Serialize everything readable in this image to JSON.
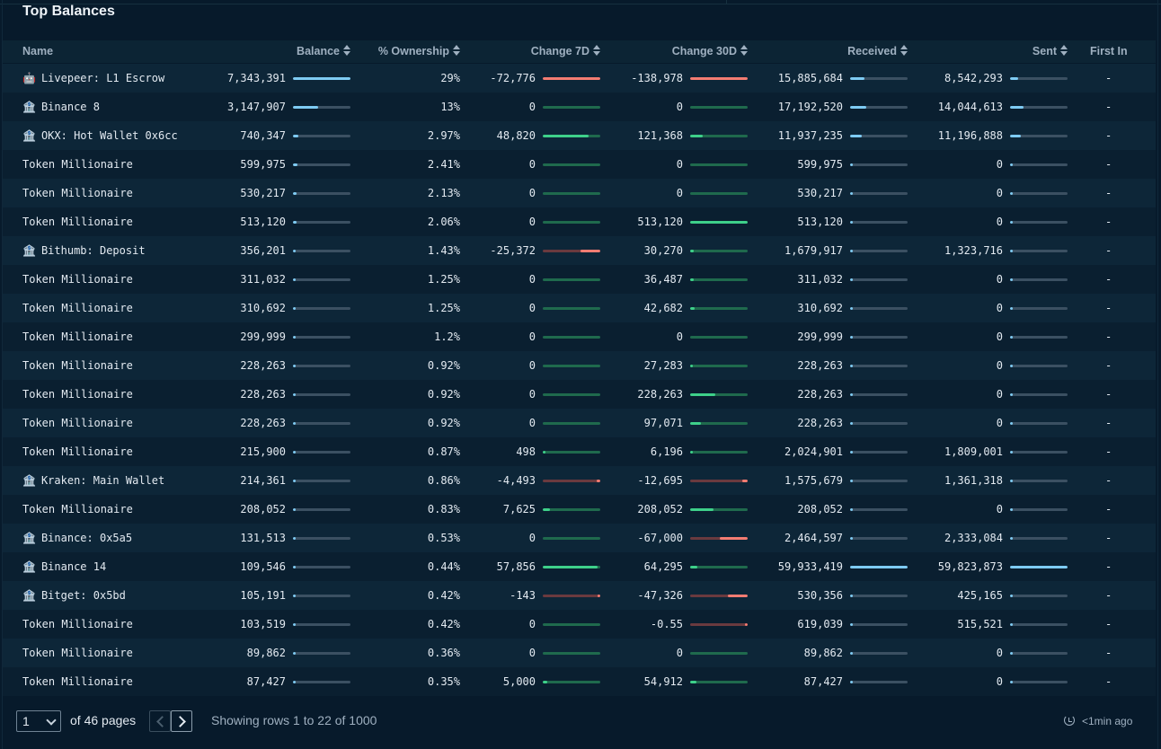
{
  "title": "Top Balances",
  "columns": {
    "name": "Name",
    "balance": "Balance",
    "ownership": "% Ownership",
    "change7d": "Change 7D",
    "change30d": "Change 30D",
    "received": "Received",
    "sent": "Sent",
    "first_in": "First In"
  },
  "colors": {
    "blue": "#7ecbf3",
    "green": "#3ed08a",
    "red": "#f37c72",
    "track_gray": "#3b5062",
    "track_green": "#1f6a4d",
    "track_red": "#6a3a3f"
  },
  "rows": [
    {
      "icon": "robot-icon",
      "glyph": "🤖",
      "name": "Livepeer: L1 Escrow",
      "balance": "7,343,391",
      "ownership": "29%",
      "c7": "-72,776",
      "c30": "-138,978",
      "received": "15,885,684",
      "sent": "8,542,293",
      "first_in": "-",
      "bars": {
        "balance": 1.0,
        "c7": -1.0,
        "c30": -1.0,
        "received": 0.25,
        "sent": 0.14
      }
    },
    {
      "icon": "bank-icon",
      "glyph": "🏦",
      "name": "Binance 8",
      "balance": "3,147,907",
      "ownership": "13%",
      "c7": "0",
      "c30": "0",
      "received": "17,192,520",
      "sent": "14,044,613",
      "first_in": "-",
      "bars": {
        "balance": 0.43,
        "c7": 0,
        "c30": 0,
        "received": 0.28,
        "sent": 0.23
      }
    },
    {
      "icon": "bank-icon",
      "glyph": "🏦",
      "name": "OKX: Hot Wallet 0x6cc",
      "balance": "740,347",
      "ownership": "2.97%",
      "c7": "48,820",
      "c30": "121,368",
      "received": "11,937,235",
      "sent": "11,196,888",
      "first_in": "-",
      "bars": {
        "balance": 0.1,
        "c7": 0.8,
        "c30": 0.22,
        "received": 0.2,
        "sent": 0.19
      }
    },
    {
      "icon": "",
      "glyph": "",
      "name": "Token Millionaire",
      "balance": "599,975",
      "ownership": "2.41%",
      "c7": "0",
      "c30": "0",
      "received": "599,975",
      "sent": "0",
      "first_in": "-",
      "bars": {
        "balance": 0.08,
        "c7": 0,
        "c30": 0,
        "received": 0.01,
        "sent": 0
      }
    },
    {
      "icon": "",
      "glyph": "",
      "name": "Token Millionaire",
      "balance": "530,217",
      "ownership": "2.13%",
      "c7": "0",
      "c30": "0",
      "received": "530,217",
      "sent": "0",
      "first_in": "-",
      "bars": {
        "balance": 0.07,
        "c7": 0,
        "c30": 0,
        "received": 0.01,
        "sent": 0
      }
    },
    {
      "icon": "",
      "glyph": "",
      "name": "Token Millionaire",
      "balance": "513,120",
      "ownership": "2.06%",
      "c7": "0",
      "c30": "513,120",
      "received": "513,120",
      "sent": "0",
      "first_in": "-",
      "bars": {
        "balance": 0.07,
        "c7": 0,
        "c30": 1.0,
        "received": 0.01,
        "sent": 0
      }
    },
    {
      "icon": "bank-icon",
      "glyph": "🏦",
      "name": "Bithumb: Deposit",
      "balance": "356,201",
      "ownership": "1.43%",
      "c7": "-25,372",
      "c30": "30,270",
      "received": "1,679,917",
      "sent": "1,323,716",
      "first_in": "-",
      "bars": {
        "balance": 0.05,
        "c7": -0.35,
        "c30": 0.06,
        "received": 0.03,
        "sent": 0.02
      }
    },
    {
      "icon": "",
      "glyph": "",
      "name": "Token Millionaire",
      "balance": "311,032",
      "ownership": "1.25%",
      "c7": "0",
      "c30": "36,487",
      "received": "311,032",
      "sent": "0",
      "first_in": "-",
      "bars": {
        "balance": 0.04,
        "c7": 0,
        "c30": 0.07,
        "received": 0.01,
        "sent": 0
      }
    },
    {
      "icon": "",
      "glyph": "",
      "name": "Token Millionaire",
      "balance": "310,692",
      "ownership": "1.25%",
      "c7": "0",
      "c30": "42,682",
      "received": "310,692",
      "sent": "0",
      "first_in": "-",
      "bars": {
        "balance": 0.04,
        "c7": 0,
        "c30": 0.08,
        "received": 0.01,
        "sent": 0
      }
    },
    {
      "icon": "",
      "glyph": "",
      "name": "Token Millionaire",
      "balance": "299,999",
      "ownership": "1.2%",
      "c7": "0",
      "c30": "0",
      "received": "299,999",
      "sent": "0",
      "first_in": "-",
      "bars": {
        "balance": 0.04,
        "c7": 0,
        "c30": 0,
        "received": 0.01,
        "sent": 0
      }
    },
    {
      "icon": "",
      "glyph": "",
      "name": "Token Millionaire",
      "balance": "228,263",
      "ownership": "0.92%",
      "c7": "0",
      "c30": "27,283",
      "received": "228,263",
      "sent": "0",
      "first_in": "-",
      "bars": {
        "balance": 0.03,
        "c7": 0,
        "c30": 0.05,
        "received": 0.01,
        "sent": 0
      }
    },
    {
      "icon": "",
      "glyph": "",
      "name": "Token Millionaire",
      "balance": "228,263",
      "ownership": "0.92%",
      "c7": "0",
      "c30": "228,263",
      "received": "228,263",
      "sent": "0",
      "first_in": "-",
      "bars": {
        "balance": 0.03,
        "c7": 0,
        "c30": 0.44,
        "received": 0.01,
        "sent": 0
      }
    },
    {
      "icon": "",
      "glyph": "",
      "name": "Token Millionaire",
      "balance": "228,263",
      "ownership": "0.92%",
      "c7": "0",
      "c30": "97,071",
      "received": "228,263",
      "sent": "0",
      "first_in": "-",
      "bars": {
        "balance": 0.03,
        "c7": 0,
        "c30": 0.19,
        "received": 0.01,
        "sent": 0
      }
    },
    {
      "icon": "",
      "glyph": "",
      "name": "Token Millionaire",
      "balance": "215,900",
      "ownership": "0.87%",
      "c7": "498",
      "c30": "6,196",
      "received": "2,024,901",
      "sent": "1,809,001",
      "first_in": "-",
      "bars": {
        "balance": 0.03,
        "c7": 0.01,
        "c30": 0.01,
        "received": 0.03,
        "sent": 0.03
      }
    },
    {
      "icon": "bank-icon",
      "glyph": "🏦",
      "name": "Kraken: Main Wallet",
      "balance": "214,361",
      "ownership": "0.86%",
      "c7": "-4,493",
      "c30": "-12,695",
      "received": "1,575,679",
      "sent": "1,361,318",
      "first_in": "-",
      "bars": {
        "balance": 0.03,
        "c7": -0.06,
        "c30": -0.09,
        "received": 0.03,
        "sent": 0.02
      }
    },
    {
      "icon": "",
      "glyph": "",
      "name": "Token Millionaire",
      "balance": "208,052",
      "ownership": "0.83%",
      "c7": "7,625",
      "c30": "208,052",
      "received": "208,052",
      "sent": "0",
      "first_in": "-",
      "bars": {
        "balance": 0.03,
        "c7": 0.12,
        "c30": 0.41,
        "received": 0.01,
        "sent": 0
      }
    },
    {
      "icon": "bank-icon",
      "glyph": "🏦",
      "name": "Binance: 0x5a5",
      "balance": "131,513",
      "ownership": "0.53%",
      "c7": "0",
      "c30": "-67,000",
      "received": "2,464,597",
      "sent": "2,333,084",
      "first_in": "-",
      "bars": {
        "balance": 0.02,
        "c7": 0,
        "c30": -0.48,
        "received": 0.04,
        "sent": 0.04
      }
    },
    {
      "icon": "bank-icon",
      "glyph": "🏦",
      "name": "Binance 14",
      "balance": "109,546",
      "ownership": "0.44%",
      "c7": "57,856",
      "c30": "64,295",
      "received": "59,933,419",
      "sent": "59,823,873",
      "first_in": "-",
      "bars": {
        "balance": 0.01,
        "c7": 0.95,
        "c30": 0.12,
        "received": 1.0,
        "sent": 1.0
      }
    },
    {
      "icon": "bank-icon",
      "glyph": "🏦",
      "name": "Bitget: 0x5bd",
      "balance": "105,191",
      "ownership": "0.42%",
      "c7": "-143",
      "c30": "-47,326",
      "received": "530,356",
      "sent": "425,165",
      "first_in": "-",
      "bars": {
        "balance": 0.01,
        "c7": -0.01,
        "c30": -0.34,
        "received": 0.01,
        "sent": 0.01
      }
    },
    {
      "icon": "",
      "glyph": "",
      "name": "Token Millionaire",
      "balance": "103,519",
      "ownership": "0.42%",
      "c7": "0",
      "c30": "-0.55",
      "received": "619,039",
      "sent": "515,521",
      "first_in": "-",
      "bars": {
        "balance": 0.01,
        "c7": 0,
        "c30": -0.001,
        "received": 0.01,
        "sent": 0.01
      }
    },
    {
      "icon": "",
      "glyph": "",
      "name": "Token Millionaire",
      "balance": "89,862",
      "ownership": "0.36%",
      "c7": "0",
      "c30": "0",
      "received": "89,862",
      "sent": "0",
      "first_in": "-",
      "bars": {
        "balance": 0.01,
        "c7": 0,
        "c30": 0,
        "received": 0.01,
        "sent": 0
      }
    },
    {
      "icon": "",
      "glyph": "",
      "name": "Token Millionaire",
      "balance": "87,427",
      "ownership": "0.35%",
      "c7": "5,000",
      "c30": "54,912",
      "received": "87,427",
      "sent": "0",
      "first_in": "-",
      "bars": {
        "balance": 0.01,
        "c7": 0.08,
        "c30": 0.11,
        "received": 0.01,
        "sent": 0
      }
    }
  ],
  "pagination": {
    "current_page": "1",
    "of_pages": "of 46 pages",
    "showing": "Showing rows 1 to 22 of 1000",
    "refresh_label": "<1min ago"
  }
}
